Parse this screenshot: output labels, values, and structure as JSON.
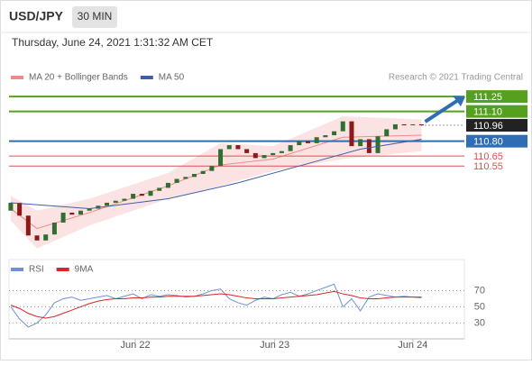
{
  "header": {
    "symbol": "USD/JPY",
    "timeframe": "30 MIN",
    "datetime": "Thursday, June 24, 2021 1:31:32 AM CET",
    "credit": "Research © 2021 Trading Central"
  },
  "chart_data": [
    {
      "type": "candlestick",
      "legend": [
        {
          "name": "MA 20 + Bollinger Bands",
          "color": "#f08a8a"
        },
        {
          "name": "MA 50",
          "color": "#3d5fa8"
        }
      ],
      "x": [
        0,
        1,
        2,
        3,
        4,
        5,
        6,
        7,
        8,
        9,
        10,
        11,
        12,
        13,
        14,
        15,
        16,
        17,
        18,
        19,
        20,
        21,
        22,
        23,
        24,
        25,
        26,
        27,
        28,
        29,
        30,
        31,
        32,
        33,
        34,
        35,
        36,
        37,
        38,
        39,
        40,
        41,
        42,
        43,
        44,
        45,
        46,
        47
      ],
      "open": [
        110.1,
        110.18,
        110.05,
        109.85,
        109.8,
        109.86,
        109.98,
        110.08,
        110.06,
        110.1,
        110.12,
        110.15,
        110.18,
        110.2,
        110.22,
        110.27,
        110.25,
        110.3,
        110.33,
        110.38,
        110.42,
        110.44,
        110.47,
        110.5,
        110.55,
        110.72,
        110.76,
        110.72,
        110.68,
        110.63,
        110.66,
        110.68,
        110.7,
        110.76,
        110.8,
        110.78,
        110.84,
        110.86,
        110.9,
        111.0,
        110.75,
        110.82,
        110.68,
        110.85,
        110.92,
        110.97,
        110.96,
        110.97
      ],
      "close": [
        110.18,
        110.05,
        109.85,
        109.8,
        109.86,
        109.98,
        110.08,
        110.06,
        110.1,
        110.12,
        110.15,
        110.18,
        110.2,
        110.22,
        110.27,
        110.25,
        110.3,
        110.33,
        110.38,
        110.42,
        110.44,
        110.47,
        110.5,
        110.55,
        110.72,
        110.76,
        110.72,
        110.68,
        110.63,
        110.66,
        110.68,
        110.7,
        110.76,
        110.8,
        110.78,
        110.84,
        110.86,
        110.9,
        111.0,
        110.75,
        110.82,
        110.68,
        110.85,
        110.92,
        110.97,
        110.96,
        110.97,
        110.96
      ],
      "up_color": "#2f6f2f",
      "down_color": "#8b1a1a",
      "band": {
        "x": [
          0,
          3,
          9,
          18,
          24,
          30,
          38,
          47
        ],
        "upper": [
          110.25,
          110.1,
          110.22,
          110.48,
          110.78,
          110.75,
          111.05,
          111.02
        ],
        "lower": [
          110.0,
          109.72,
          109.95,
          110.22,
          110.35,
          110.5,
          110.62,
          110.7
        ],
        "middle": [
          110.12,
          109.92,
          110.08,
          110.35,
          110.56,
          110.62,
          110.84,
          110.86
        ],
        "fill": "#fbdcdc"
      },
      "ma50": {
        "x": [
          0,
          9,
          18,
          26,
          33,
          40,
          47
        ],
        "values": [
          110.18,
          110.12,
          110.22,
          110.38,
          110.55,
          110.72,
          110.82
        ]
      },
      "levels": [
        {
          "value": 111.25,
          "label": "111.25",
          "color": "#56a01f",
          "style": "box"
        },
        {
          "value": 111.1,
          "label": "111.10",
          "color": "#56a01f",
          "style": "box"
        },
        {
          "value": 110.8,
          "label": "110.80",
          "color": "#2f6db5",
          "style": "box"
        },
        {
          "value": 110.65,
          "label": "110.65",
          "color": "#d9534f",
          "style": "text"
        },
        {
          "value": 110.55,
          "label": "110.55",
          "color": "#d9534f",
          "style": "text"
        }
      ],
      "current": 110.96,
      "xlim": [
        -0.2,
        51.9
      ],
      "ylim": [
        109.68,
        111.36
      ]
    },
    {
      "type": "line",
      "series": [
        {
          "name": "RSI",
          "color": "#6f8fd8",
          "values": [
            50,
            35,
            25,
            30,
            40,
            55,
            60,
            62,
            58,
            60,
            62,
            64,
            60,
            63,
            66,
            60,
            65,
            63,
            65,
            64,
            62,
            63,
            66,
            70,
            72,
            60,
            55,
            52,
            58,
            62,
            60,
            65,
            68,
            63,
            66,
            70,
            74,
            78,
            50,
            60,
            45,
            62,
            66,
            64,
            62,
            63,
            62,
            61
          ]
        },
        {
          "name": "9MA",
          "color": "#d62728",
          "values": [
            52,
            48,
            42,
            38,
            36,
            38,
            42,
            46,
            50,
            54,
            57,
            59,
            60,
            60,
            61,
            61,
            62,
            62,
            63,
            63,
            63,
            63,
            64,
            65,
            66,
            65,
            63,
            61,
            60,
            60,
            60,
            61,
            62,
            63,
            64,
            65,
            67,
            69,
            66,
            64,
            61,
            60,
            60,
            61,
            62,
            62,
            62,
            62
          ]
        }
      ],
      "x": [
        0,
        1,
        2,
        3,
        4,
        5,
        6,
        7,
        8,
        9,
        10,
        11,
        12,
        13,
        14,
        15,
        16,
        17,
        18,
        19,
        20,
        21,
        22,
        23,
        24,
        25,
        26,
        27,
        28,
        29,
        30,
        31,
        32,
        33,
        34,
        35,
        36,
        37,
        38,
        39,
        40,
        41,
        42,
        43,
        44,
        45,
        46,
        47
      ],
      "xlim": [
        -0.2,
        51.9
      ],
      "ylim": [
        16,
        95
      ],
      "yticks": [
        30,
        50,
        70
      ],
      "xticks": [
        {
          "value": 14.25,
          "label": "Jun 22"
        },
        {
          "value": 30.2,
          "label": "Jun 23"
        },
        {
          "value": 46,
          "label": "Jun 24"
        }
      ]
    }
  ]
}
